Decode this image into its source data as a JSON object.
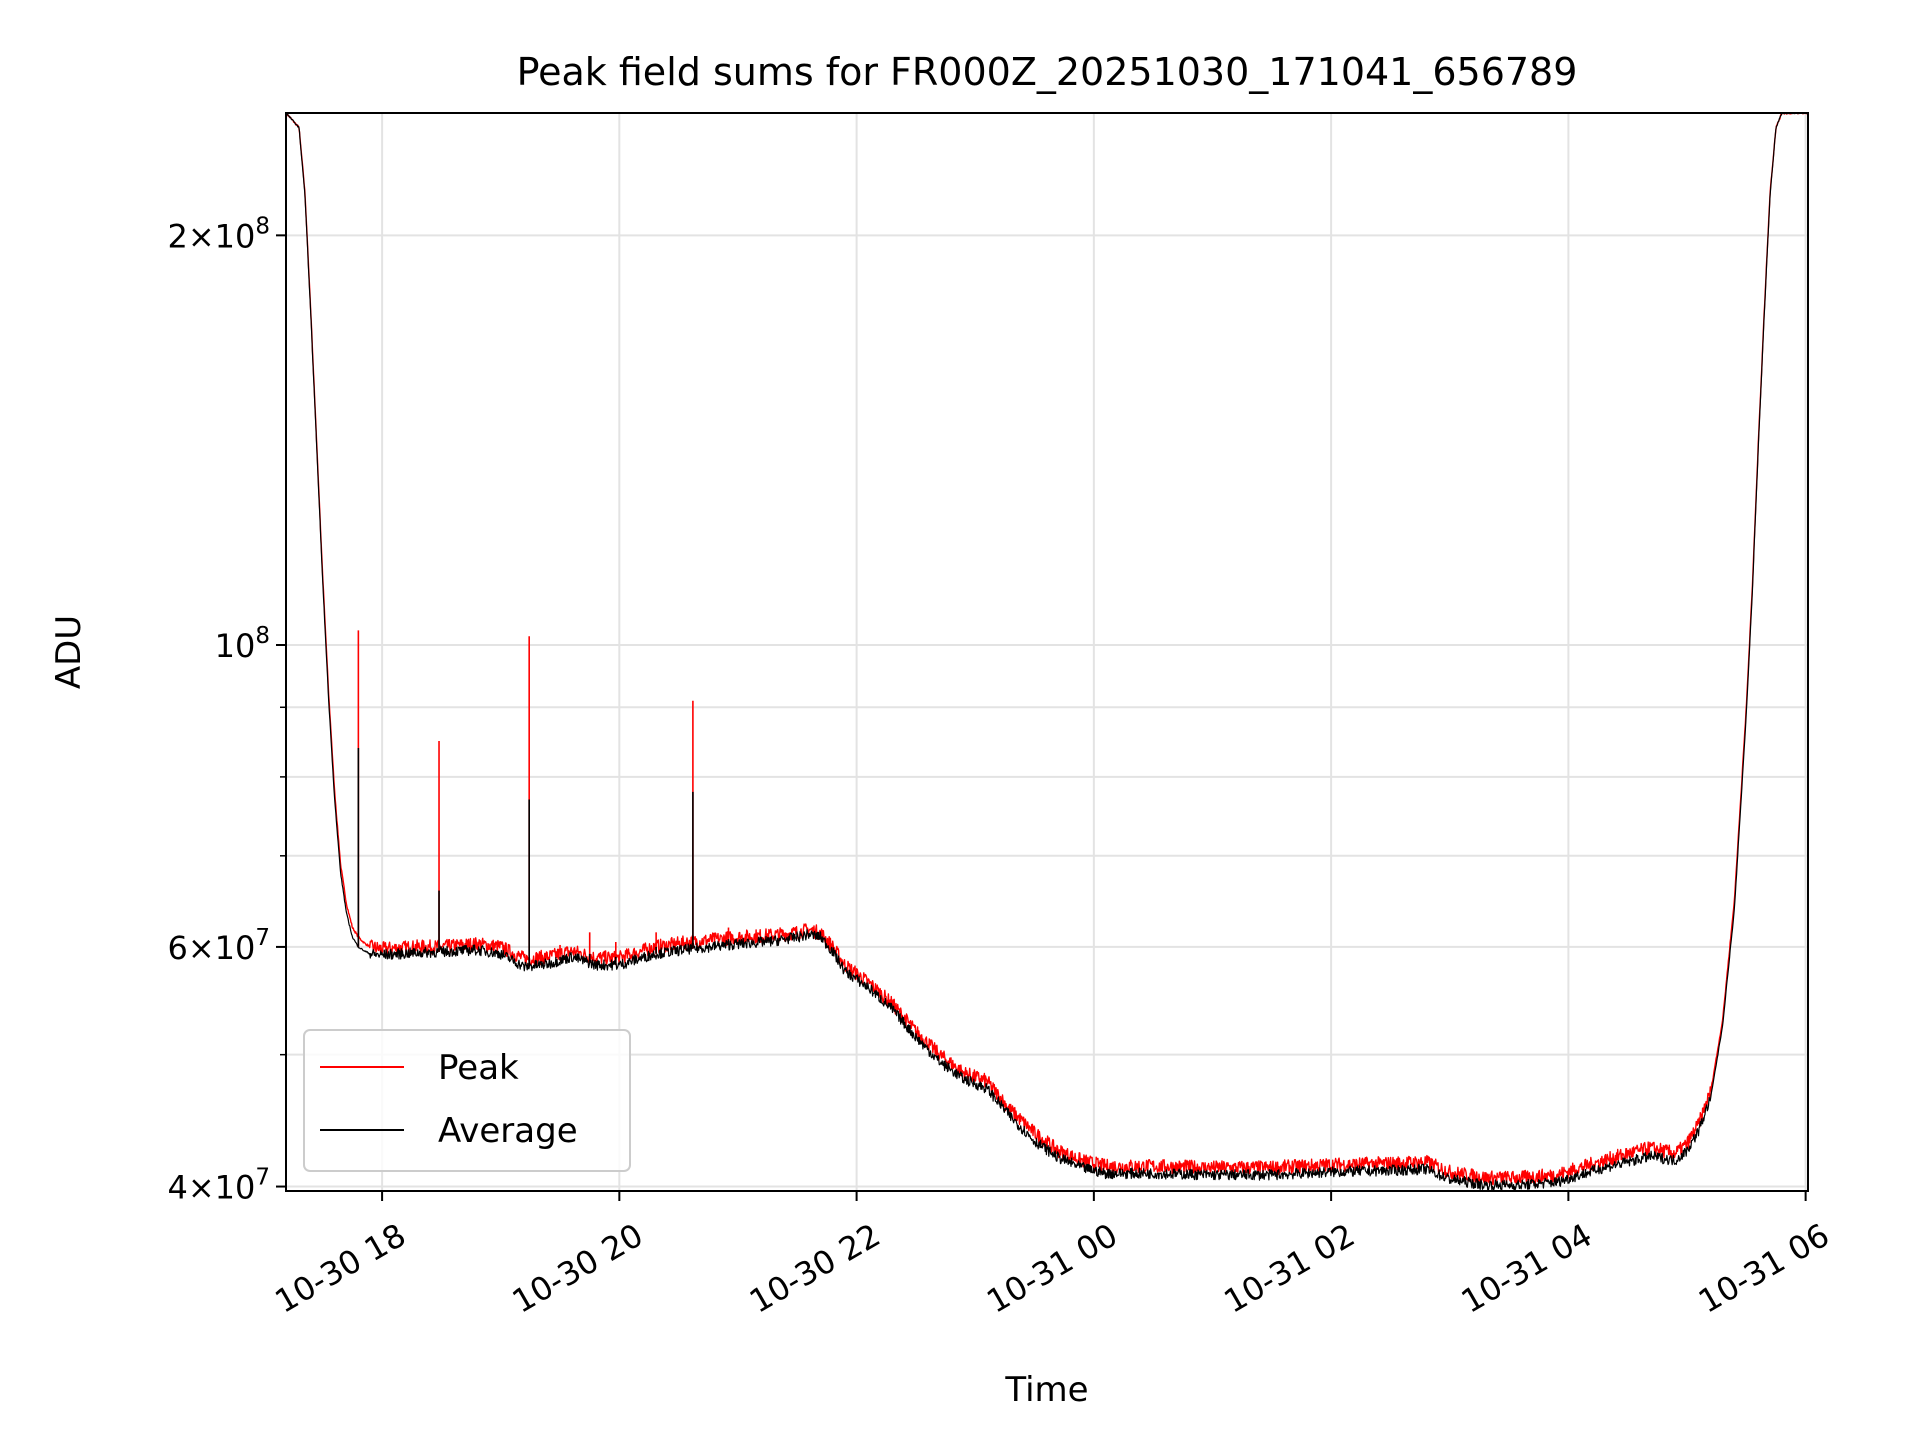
{
  "chart_data": {
    "type": "line",
    "title": "Peak field sums for FR000Z_20251030_171041_656789",
    "xlabel": "Time",
    "ylabel": "ADU",
    "x_unit": "hours since 2025-10-30 00:00",
    "xlim": [
      17.19,
      30.02
    ],
    "ylim": [
      39700000,
      246000000
    ],
    "yscale": "log",
    "grid": true,
    "legend_position": "lower-left",
    "x_ticks": [
      {
        "value": 18,
        "label": "10-30 18"
      },
      {
        "value": 20,
        "label": "10-30 20"
      },
      {
        "value": 22,
        "label": "10-30 22"
      },
      {
        "value": 24,
        "label": "10-31 00"
      },
      {
        "value": 26,
        "label": "10-31 02"
      },
      {
        "value": 28,
        "label": "10-31 04"
      },
      {
        "value": 30,
        "label": "10-31 06"
      }
    ],
    "y_major_ticks": [
      {
        "value": 40000000,
        "base": "4",
        "exp": "7"
      },
      {
        "value": 60000000,
        "base": "6",
        "exp": "7"
      },
      {
        "value": 100000000,
        "base": "",
        "exp": "8"
      },
      {
        "value": 200000000,
        "base": "2",
        "exp": "8"
      }
    ],
    "y_minor_ticks": [
      50000000,
      70000000,
      80000000,
      90000000
    ],
    "series": [
      {
        "name": "Peak",
        "color": "#ff0000",
        "x": [
          17.19,
          17.3,
          17.35,
          17.4,
          17.45,
          17.5,
          17.55,
          17.6,
          17.65,
          17.7,
          17.75,
          17.8,
          17.85,
          17.9,
          17.95,
          18.0,
          18.3,
          18.5,
          18.8,
          19.0,
          19.2,
          19.4,
          19.6,
          19.8,
          20.0,
          20.3,
          20.6,
          21.0,
          21.3,
          21.5,
          21.6,
          21.7,
          21.8,
          21.9,
          22.1,
          22.3,
          22.5,
          22.7,
          22.9,
          23.1,
          23.3,
          23.5,
          23.7,
          23.9,
          24.1,
          24.5,
          25.0,
          25.5,
          26.0,
          26.5,
          26.8,
          27.0,
          27.3,
          27.6,
          27.9,
          28.1,
          28.3,
          28.5,
          28.7,
          28.9,
          29.0,
          29.1,
          29.2,
          29.3,
          29.4,
          29.5,
          29.55,
          29.6,
          29.65,
          29.7,
          29.75,
          29.8,
          29.85,
          29.9,
          29.95,
          30.02
        ],
        "y": [
          246000000,
          240000000,
          215000000,
          175000000,
          140000000,
          112000000,
          92000000,
          78000000,
          69000000,
          64500000,
          62000000,
          61000000,
          60400000,
          60000000,
          59900000,
          59800000,
          60000000,
          60000000,
          60300000,
          60000000,
          58800000,
          59000000,
          59600000,
          58900000,
          58900000,
          60000000,
          60500000,
          61000000,
          61200000,
          61500000,
          61800000,
          61400000,
          60000000,
          58200000,
          56500000,
          54500000,
          52000000,
          50000000,
          48500000,
          47800000,
          45500000,
          43800000,
          42500000,
          41800000,
          41400000,
          41400000,
          41300000,
          41300000,
          41500000,
          41600000,
          41700000,
          41000000,
          40600000,
          40600000,
          40800000,
          41300000,
          41800000,
          42300000,
          42700000,
          42300000,
          43000000,
          44500000,
          47000000,
          53000000,
          65000000,
          90000000,
          110000000,
          140000000,
          175000000,
          215000000,
          240000000,
          246000000,
          246000000,
          246000000,
          246000000,
          246000000
        ]
      },
      {
        "name": "Average",
        "color": "#000000",
        "x": [
          17.19,
          17.3,
          17.35,
          17.4,
          17.45,
          17.5,
          17.55,
          17.6,
          17.65,
          17.7,
          17.75,
          17.8,
          17.85,
          17.9,
          17.95,
          18.0,
          18.3,
          18.5,
          18.8,
          19.0,
          19.2,
          19.4,
          19.6,
          19.8,
          20.0,
          20.3,
          20.6,
          21.0,
          21.3,
          21.5,
          21.6,
          21.7,
          21.8,
          21.9,
          22.1,
          22.3,
          22.5,
          22.7,
          22.9,
          23.1,
          23.3,
          23.5,
          23.7,
          23.9,
          24.1,
          24.5,
          25.0,
          25.5,
          26.0,
          26.5,
          26.8,
          27.0,
          27.3,
          27.6,
          27.9,
          28.1,
          28.3,
          28.5,
          28.7,
          28.9,
          29.0,
          29.1,
          29.2,
          29.3,
          29.4,
          29.5,
          29.55,
          29.6,
          29.65,
          29.7,
          29.75,
          29.8,
          29.85,
          29.9,
          29.95,
          30.02
        ],
        "y": [
          246000000,
          240000000,
          214000000,
          174000000,
          139000000,
          111000000,
          91000000,
          77000000,
          68000000,
          63500000,
          61000000,
          60000000,
          59600000,
          59300000,
          59200000,
          59200000,
          59400000,
          59500000,
          59700000,
          59300000,
          58000000,
          58300000,
          59000000,
          58200000,
          58200000,
          59300000,
          59800000,
          60300000,
          60600000,
          61000000,
          61300000,
          61000000,
          59500000,
          57600000,
          56000000,
          54000000,
          51500000,
          49400000,
          48000000,
          47200000,
          45000000,
          43200000,
          42000000,
          41300000,
          40900000,
          40900000,
          40800000,
          40800000,
          41000000,
          41100000,
          41200000,
          40500000,
          40100000,
          40100000,
          40300000,
          40800000,
          41300000,
          41700000,
          42100000,
          41800000,
          42500000,
          44000000,
          46500000,
          52500000,
          64000000,
          89000000,
          109000000,
          139000000,
          174000000,
          214000000,
          240000000,
          246000000,
          246000000,
          246000000,
          246000000,
          246000000
        ]
      }
    ],
    "spikes": [
      {
        "x": 17.8,
        "peak": 102500000,
        "average": 84000000
      },
      {
        "x": 18.48,
        "peak": 85000000,
        "average": 66000000
      },
      {
        "x": 19.24,
        "peak": 101500000,
        "average": 77000000
      },
      {
        "x": 20.62,
        "peak": 91000000,
        "average": 78000000
      },
      {
        "x": 19.5,
        "peak": 60200000,
        "average": 59000000
      },
      {
        "x": 19.75,
        "peak": 61500000,
        "average": 59300000
      },
      {
        "x": 19.97,
        "peak": 60500000,
        "average": 59000000
      },
      {
        "x": 20.31,
        "peak": 61500000,
        "average": 60000000
      },
      {
        "x": 20.92,
        "peak": 62000000,
        "average": 60800000
      }
    ]
  }
}
